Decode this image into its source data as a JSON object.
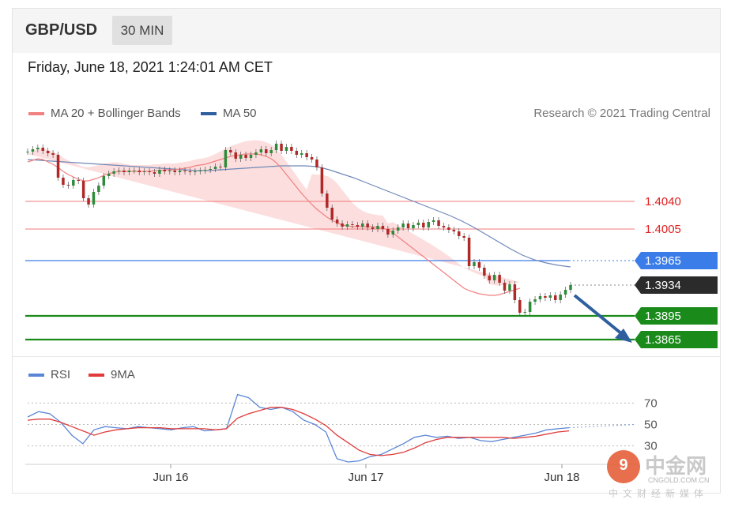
{
  "header": {
    "pair": "GBP/USD",
    "interval": "30 MIN",
    "datetime": "Friday, June 18, 2021 1:24:01 AM CET"
  },
  "legend": {
    "ma20_label": "MA 20 + Bollinger Bands",
    "ma50_label": "MA 50",
    "credit": "Research © 2021 Trading Central"
  },
  "rsi_legend": {
    "rsi_label": "RSI",
    "ma9_label": "9MA"
  },
  "colors": {
    "ma20": "#f28080",
    "ma50": "#2f5f9e",
    "resistance": "#f07a7a",
    "pivot": "#3b7de8",
    "support": "#1a8a1a",
    "current": "#2b2b2b",
    "rsi": "#5a86d6",
    "rsi_ma": "#e03a3a"
  },
  "chart_data": [
    {
      "type": "line",
      "x_ticks": [
        "Jun 16",
        "Jun 17",
        "Jun 18"
      ],
      "levels": [
        {
          "value": 1.404,
          "label": "1.4040",
          "kind": "resistance"
        },
        {
          "value": 1.4005,
          "label": "1.4005",
          "kind": "resistance"
        },
        {
          "value": 1.3965,
          "label": "1.3965",
          "kind": "pivot"
        },
        {
          "value": 1.3934,
          "label": "1.3934",
          "kind": "current"
        },
        {
          "value": 1.3895,
          "label": "1.3895",
          "kind": "support"
        },
        {
          "value": 1.3865,
          "label": "1.3865",
          "kind": "support"
        }
      ],
      "close": [
        1.4103,
        1.4106,
        1.4108,
        1.4104,
        1.4101,
        1.4099,
        1.407,
        1.4061,
        1.406,
        1.4067,
        1.4066,
        1.4044,
        1.4036,
        1.4052,
        1.406,
        1.4072,
        1.4075,
        1.4078,
        1.4079,
        1.4077,
        1.4079,
        1.4079,
        1.4077,
        1.4078,
        1.4077,
        1.4075,
        1.408,
        1.4078,
        1.4079,
        1.4077,
        1.4079,
        1.4078,
        1.4077,
        1.4078,
        1.4079,
        1.408,
        1.4081,
        1.4084,
        1.4083,
        1.4105,
        1.4102,
        1.4094,
        1.4099,
        1.4095,
        1.4099,
        1.4102,
        1.4106,
        1.4101,
        1.4105,
        1.4113,
        1.4104,
        1.4109,
        1.4104,
        1.4099,
        1.4101,
        1.4096,
        1.4093,
        1.4083,
        1.405,
        1.4032,
        1.4017,
        1.4012,
        1.4008,
        1.4011,
        1.401,
        1.4008,
        1.4012,
        1.4007,
        1.4005,
        1.4009,
        1.4005,
        1.3998,
        1.4003,
        1.4007,
        1.4012,
        1.4006,
        1.401,
        1.4013,
        1.4007,
        1.4014,
        1.4016,
        1.4009,
        1.4007,
        1.4004,
        1.4002,
        1.3996,
        1.3994,
        1.3958,
        1.3963,
        1.3956,
        1.3946,
        1.394,
        1.3947,
        1.3937,
        1.3927,
        1.3935,
        1.3915,
        1.3899,
        1.39,
        1.3913,
        1.3916,
        1.392,
        1.3918,
        1.3921,
        1.3915,
        1.3922,
        1.3928,
        1.3934
      ],
      "ma20": [
        1.409,
        1.4092,
        1.4094,
        1.4093,
        1.409,
        1.4087,
        1.4083,
        1.4078,
        1.4074,
        1.4071,
        1.4068,
        1.4066,
        1.4066,
        1.4068,
        1.407,
        1.4073,
        1.4075,
        1.4077,
        1.4078,
        1.4078,
        1.4078,
        1.4078,
        1.4078,
        1.4078,
        1.4078,
        1.4079,
        1.4079,
        1.408,
        1.408,
        1.408,
        1.4081,
        1.4082,
        1.4083,
        1.4085,
        1.4086,
        1.4087,
        1.4089,
        1.4091,
        1.4093,
        1.4095,
        1.4097,
        1.4098,
        1.4099,
        1.41,
        1.41,
        1.41,
        1.4099,
        1.4097,
        1.4094,
        1.4089,
        1.4082,
        1.4074,
        1.4066,
        1.4058,
        1.405,
        1.4043,
        1.4036,
        1.403,
        1.4025,
        1.402,
        1.4016,
        1.4013,
        1.401,
        1.4009,
        1.4008,
        1.4008,
        1.4008,
        1.4008,
        1.4008,
        1.4007,
        1.4006,
        1.4004,
        1.4,
        1.3995,
        1.399,
        1.3985,
        1.398,
        1.3975,
        1.397,
        1.3965,
        1.396,
        1.3955,
        1.395,
        1.3945,
        1.394,
        1.3935,
        1.393,
        1.3927,
        1.3925,
        1.3923,
        1.3922,
        1.3921,
        1.3921,
        1.3922,
        1.3924,
        1.3926,
        1.3928,
        1.393
      ],
      "ma50": [
        1.4093,
        1.4092,
        1.4091,
        1.409,
        1.4089,
        1.4088,
        1.4087,
        1.4086,
        1.4085,
        1.4084,
        1.4083,
        1.4082,
        1.4081,
        1.408,
        1.4079,
        1.4079,
        1.408,
        1.4081,
        1.4082,
        1.4083,
        1.4084,
        1.4085,
        1.4085,
        1.4085,
        1.4084,
        1.408,
        1.4075,
        1.407,
        1.4064,
        1.4058,
        1.4052,
        1.4046,
        1.404,
        1.4034,
        1.4028,
        1.4022,
        1.4015,
        1.4007,
        1.3998,
        1.3989,
        1.398,
        1.3972,
        1.3966,
        1.3962,
        1.3959,
        1.3957
      ],
      "ylim": [
        1.385,
        1.413
      ]
    },
    {
      "type": "line",
      "y_ticks": [
        70,
        50,
        30
      ],
      "series": [
        {
          "name": "RSI",
          "values": [
            57,
            62,
            60,
            52,
            40,
            32,
            45,
            48,
            47,
            46,
            48,
            47,
            46,
            45,
            47,
            48,
            44,
            45,
            46,
            78,
            75,
            66,
            64,
            66,
            62,
            54,
            50,
            43,
            18,
            15,
            16,
            20,
            22,
            27,
            32,
            38,
            40,
            38,
            39,
            37,
            38,
            35,
            34,
            36,
            38,
            40,
            42,
            45,
            46,
            47
          ]
        },
        {
          "name": "9MA",
          "values": [
            54,
            55,
            55,
            52,
            48,
            44,
            40,
            43,
            45,
            46,
            47,
            47,
            47,
            46,
            46,
            46,
            46,
            45,
            46,
            56,
            60,
            63,
            66,
            66,
            64,
            60,
            55,
            49,
            40,
            33,
            26,
            22,
            21,
            22,
            24,
            28,
            33,
            36,
            38,
            38,
            38,
            38,
            38,
            38,
            37,
            38,
            39,
            41,
            43,
            44
          ]
        }
      ],
      "ylim": [
        15,
        85
      ]
    }
  ]
}
